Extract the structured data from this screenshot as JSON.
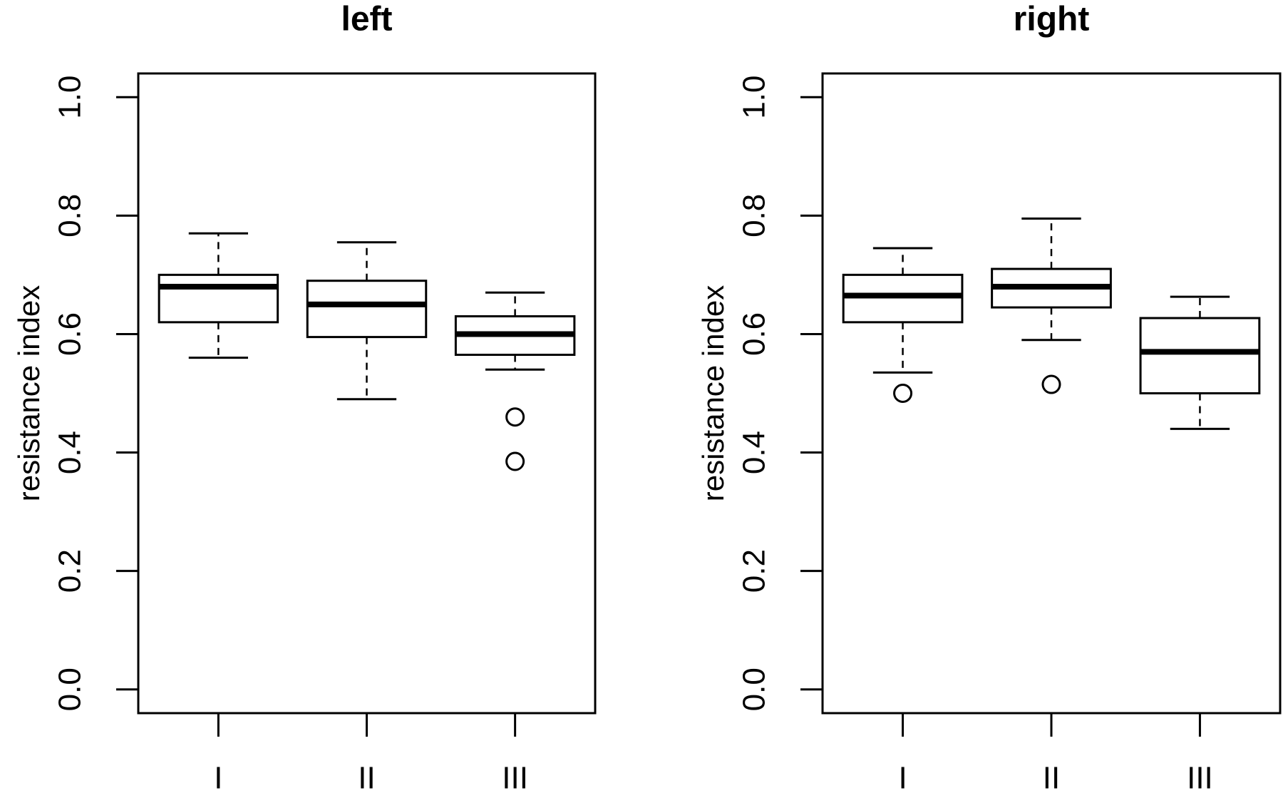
{
  "chart_data": [
    {
      "type": "boxplot",
      "title": "left",
      "ylabel": "resistance index",
      "categories": [
        "I",
        "II",
        "III"
      ],
      "boxes": [
        {
          "whisker_low": 0.56,
          "q1": 0.62,
          "median": 0.68,
          "q3": 0.7,
          "whisker_high": 0.77,
          "outliers": []
        },
        {
          "whisker_low": 0.49,
          "q1": 0.595,
          "median": 0.65,
          "q3": 0.69,
          "whisker_high": 0.755,
          "outliers": []
        },
        {
          "whisker_low": 0.54,
          "q1": 0.565,
          "median": 0.6,
          "q3": 0.63,
          "whisker_high": 0.67,
          "outliers": [
            0.46,
            0.385
          ]
        }
      ],
      "ylim": [
        -0.04,
        1.04
      ],
      "yticks": [
        {
          "value": 0,
          "label": "0.0"
        },
        0.2,
        0.4,
        0.6,
        0.8,
        {
          "value": 1,
          "label": "1.0"
        }
      ]
    },
    {
      "type": "boxplot",
      "title": "right",
      "ylabel": "resistance index",
      "categories": [
        "I",
        "II",
        "III"
      ],
      "boxes": [
        {
          "whisker_low": 0.535,
          "q1": 0.62,
          "median": 0.665,
          "q3": 0.7,
          "whisker_high": 0.745,
          "outliers": [
            0.5
          ]
        },
        {
          "whisker_low": 0.59,
          "q1": 0.645,
          "median": 0.68,
          "q3": 0.71,
          "whisker_high": 0.795,
          "outliers": [
            0.515
          ]
        },
        {
          "whisker_low": 0.44,
          "q1": 0.5,
          "median": 0.57,
          "q3": 0.627,
          "whisker_high": 0.663,
          "outliers": []
        }
      ],
      "ylim": [
        -0.04,
        1.04
      ],
      "yticks": [
        {
          "value": 0,
          "label": "0.0"
        },
        0.2,
        0.4,
        0.6,
        0.8,
        {
          "value": 1,
          "label": "1.0"
        }
      ]
    }
  ]
}
